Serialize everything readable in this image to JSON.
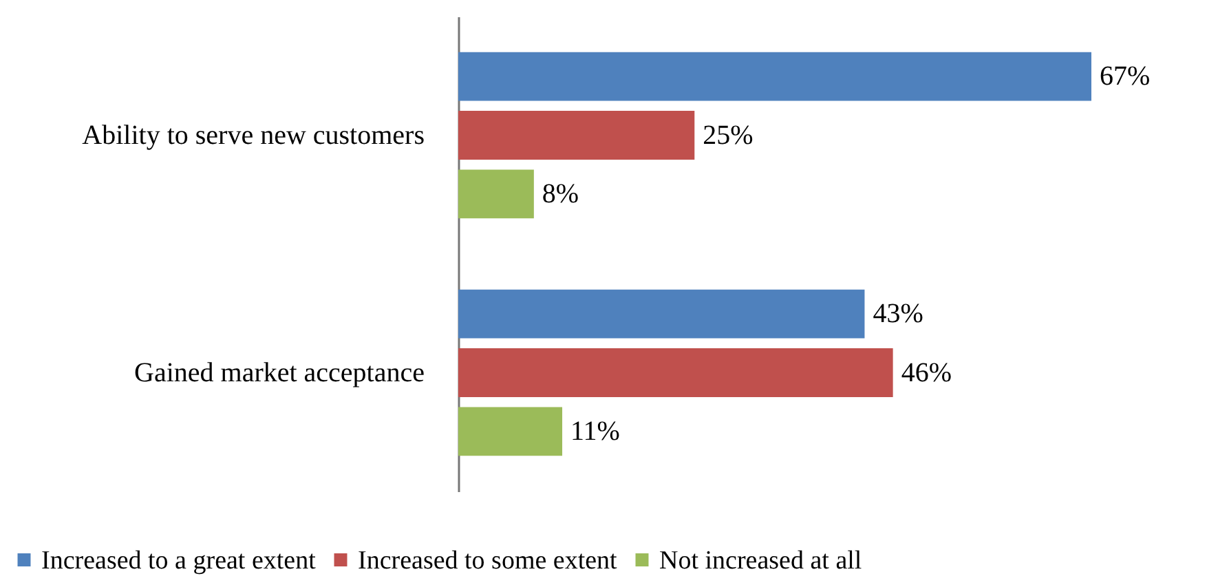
{
  "chart_data": {
    "type": "bar",
    "orientation": "horizontal",
    "categories": [
      "Ability to serve new customers",
      "Gained market acceptance"
    ],
    "series": [
      {
        "name": "Increased to a great extent",
        "color": "#4f81bd",
        "values": [
          67,
          43
        ],
        "value_labels": [
          "67%",
          "43%"
        ]
      },
      {
        "name": "Increased to some extent",
        "color": "#c0504d",
        "values": [
          25,
          46
        ],
        "value_labels": [
          "25%",
          "46%"
        ]
      },
      {
        "name": "Not increased at all",
        "color": "#9bbb59",
        "values": [
          8,
          11
        ],
        "value_labels": [
          "8%",
          "11%"
        ]
      }
    ],
    "legend": "bottom"
  }
}
